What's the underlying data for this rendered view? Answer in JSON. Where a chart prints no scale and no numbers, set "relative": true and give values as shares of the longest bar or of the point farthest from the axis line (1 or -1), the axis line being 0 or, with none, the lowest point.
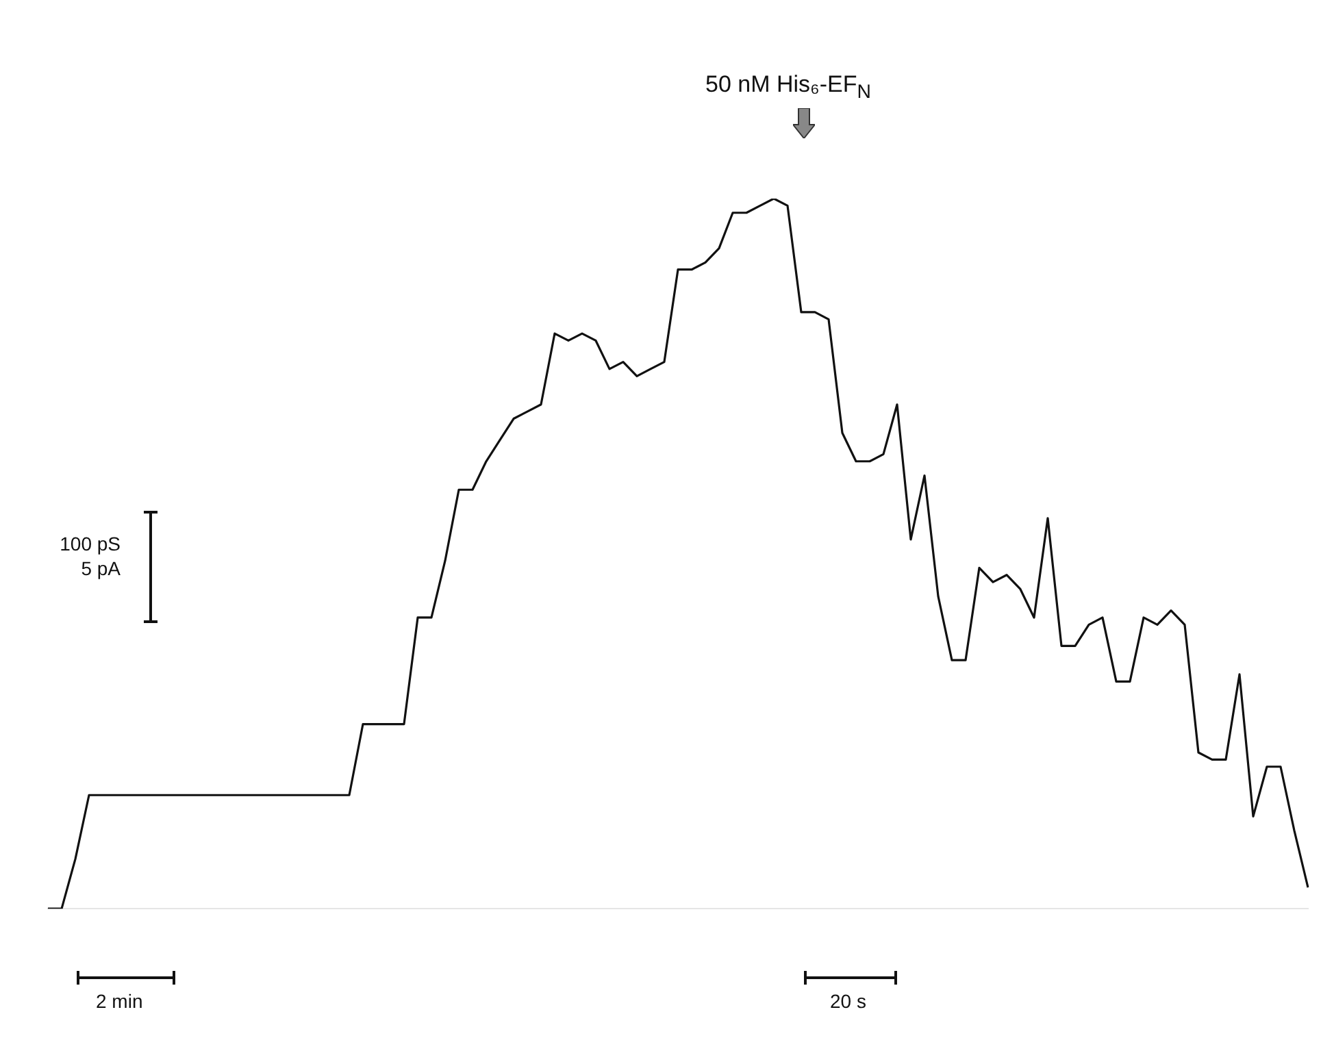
{
  "chart_data": {
    "type": "line",
    "relative": true,
    "color": "#111111",
    "legend": false,
    "categories": [
      null,
      null,
      null,
      null,
      null,
      null,
      null,
      null,
      null,
      null,
      null,
      null,
      null,
      null,
      null,
      null,
      null,
      null,
      null,
      null,
      null,
      null,
      null,
      null,
      null,
      null,
      null,
      null,
      null,
      null,
      null,
      null,
      null,
      null,
      null,
      null,
      null,
      null,
      null,
      null,
      null,
      null,
      null,
      null,
      null,
      null,
      null,
      null,
      null,
      null,
      null,
      null,
      null,
      null,
      null,
      null,
      null,
      null,
      null,
      null,
      null,
      null,
      null,
      null,
      null,
      null,
      null,
      null,
      null,
      null,
      null,
      null,
      null,
      null,
      null,
      null,
      null,
      null,
      null,
      null,
      null,
      null,
      null,
      null,
      null,
      null,
      null,
      null,
      null,
      null,
      null,
      null,
      null
    ],
    "values": [
      0,
      0,
      0.07,
      0.16,
      0.16,
      0.16,
      0.16,
      0.16,
      0.16,
      0.16,
      0.16,
      0.16,
      0.16,
      0.16,
      0.16,
      0.16,
      0.16,
      0.16,
      0.16,
      0.16,
      0.16,
      0.16,
      0.16,
      0.26,
      0.26,
      0.26,
      0.26,
      0.41,
      0.41,
      0.49,
      0.59,
      0.59,
      0.63,
      0.66,
      0.69,
      0.7,
      0.71,
      0.81,
      0.8,
      0.81,
      0.8,
      0.76,
      0.77,
      0.75,
      0.76,
      0.77,
      0.9,
      0.9,
      0.91,
      0.93,
      0.98,
      0.98,
      0.99,
      1,
      0.99,
      0.84,
      0.84,
      0.83,
      0.67,
      0.63,
      0.63,
      0.64,
      0.71,
      0.52,
      0.61,
      0.44,
      0.35,
      0.35,
      0.48,
      0.46,
      0.47,
      0.45,
      0.41,
      0.55,
      0.37,
      0.37,
      0.4,
      0.41,
      0.32,
      0.32,
      0.41,
      0.4,
      0.42,
      0.4,
      0.22,
      0.21,
      0.21,
      0.33,
      0.13,
      0.2,
      0.2,
      0.11,
      0.03
    ],
    "annotations": [
      "50 nM His₆-EF$_{N}$",
      "100 pS",
      "5 pA",
      "2 min",
      "20 s"
    ]
  }
}
